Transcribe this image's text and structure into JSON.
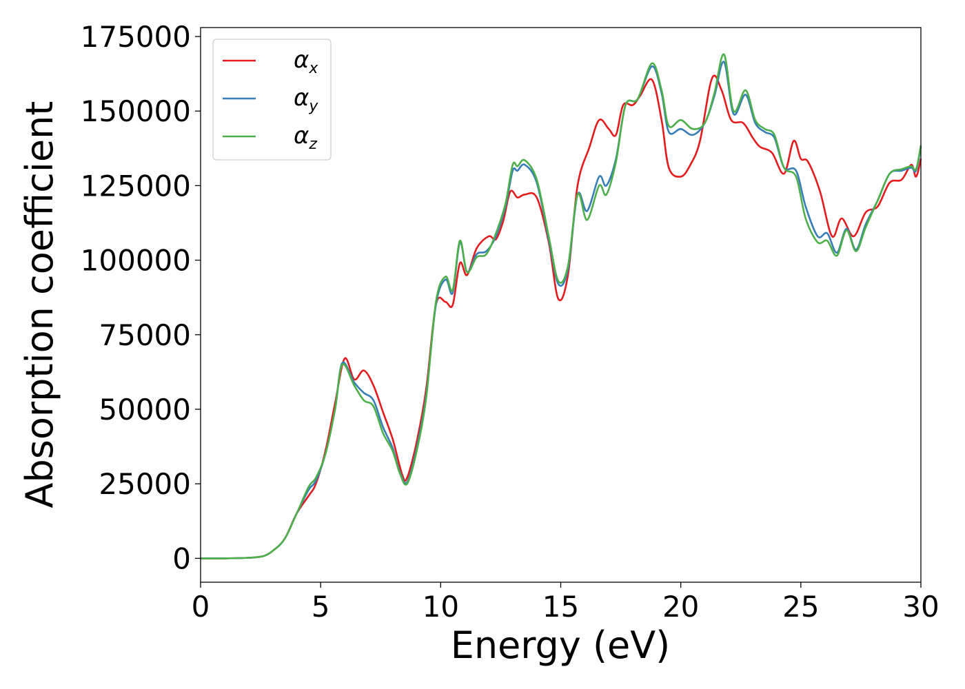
{
  "chart_data": {
    "type": "line",
    "xlabel": "Energy (eV)",
    "ylabel": "Absorption coefficient",
    "xlim": [
      0,
      30
    ],
    "ylim": [
      -8000,
      178000
    ],
    "xticks": [
      "0",
      "5",
      "10",
      "15",
      "20",
      "25",
      "30"
    ],
    "yticks": [
      "0",
      "25000",
      "50000",
      "75000",
      "100000",
      "125000",
      "150000",
      "175000"
    ],
    "grid": false,
    "legend_position": "top-left",
    "series": [
      {
        "name": "α_x",
        "label_main": "α",
        "label_sub": "x",
        "color": "#e41a1c",
        "points": [
          [
            0,
            0
          ],
          [
            1,
            0
          ],
          [
            2,
            200
          ],
          [
            2.6,
            700
          ],
          [
            3,
            2500
          ],
          [
            3.5,
            6500
          ],
          [
            4,
            15000
          ],
          [
            4.5,
            21000
          ],
          [
            4.8,
            25000
          ],
          [
            5.2,
            36000
          ],
          [
            5.6,
            52000
          ],
          [
            6,
            67000
          ],
          [
            6.4,
            60000
          ],
          [
            6.8,
            63000
          ],
          [
            7.2,
            58000
          ],
          [
            7.6,
            49000
          ],
          [
            8,
            40000
          ],
          [
            8.4,
            28000
          ],
          [
            8.6,
            27000
          ],
          [
            9,
            39000
          ],
          [
            9.4,
            57000
          ],
          [
            9.8,
            85000
          ],
          [
            10.2,
            86000
          ],
          [
            10.5,
            85000
          ],
          [
            10.8,
            99000
          ],
          [
            11.1,
            95000
          ],
          [
            11.5,
            104000
          ],
          [
            12,
            108000
          ],
          [
            12.3,
            107000
          ],
          [
            12.6,
            113000
          ],
          [
            12.9,
            123000
          ],
          [
            13.2,
            121000
          ],
          [
            13.5,
            122000
          ],
          [
            14,
            121000
          ],
          [
            14.5,
            106000
          ],
          [
            14.9,
            87000
          ],
          [
            15.3,
            95000
          ],
          [
            15.7,
            125000
          ],
          [
            16.2,
            138000
          ],
          [
            16.6,
            147000
          ],
          [
            17,
            144000
          ],
          [
            17.3,
            142000
          ],
          [
            17.6,
            152000
          ],
          [
            18,
            152000
          ],
          [
            18.3,
            155000
          ],
          [
            18.8,
            160500
          ],
          [
            19.2,
            147000
          ],
          [
            19.5,
            131000
          ],
          [
            20,
            128000
          ],
          [
            20.4,
            132000
          ],
          [
            20.8,
            140000
          ],
          [
            21.3,
            161000
          ],
          [
            21.7,
            157000
          ],
          [
            22.1,
            147000
          ],
          [
            22.6,
            146000
          ],
          [
            23,
            141000
          ],
          [
            23.3,
            138000
          ],
          [
            23.8,
            136000
          ],
          [
            24.3,
            129000
          ],
          [
            24.7,
            140000
          ],
          [
            25,
            134000
          ],
          [
            25.3,
            133000
          ],
          [
            25.8,
            123000
          ],
          [
            26.3,
            108000
          ],
          [
            26.7,
            114000
          ],
          [
            27.2,
            108000
          ],
          [
            27.7,
            116000
          ],
          [
            28.2,
            118000
          ],
          [
            28.7,
            126000
          ],
          [
            29.2,
            127000
          ],
          [
            29.6,
            132000
          ],
          [
            29.8,
            128000
          ],
          [
            30,
            134000
          ]
        ]
      },
      {
        "name": "α_y",
        "label_main": "α",
        "label_sub": "y",
        "color": "#377eb8",
        "points": [
          [
            0,
            0
          ],
          [
            1,
            0
          ],
          [
            2,
            200
          ],
          [
            2.6,
            700
          ],
          [
            3,
            2500
          ],
          [
            3.5,
            6500
          ],
          [
            4,
            15000
          ],
          [
            4.5,
            23000
          ],
          [
            4.8,
            26000
          ],
          [
            5.2,
            35000
          ],
          [
            5.6,
            50000
          ],
          [
            5.9,
            65500
          ],
          [
            6.4,
            59000
          ],
          [
            6.8,
            55500
          ],
          [
            7.2,
            53000
          ],
          [
            7.6,
            44000
          ],
          [
            8,
            37000
          ],
          [
            8.3,
            29000
          ],
          [
            8.6,
            25500
          ],
          [
            9,
            37000
          ],
          [
            9.4,
            55000
          ],
          [
            9.8,
            85000
          ],
          [
            10.2,
            93500
          ],
          [
            10.5,
            89000
          ],
          [
            10.8,
            106000
          ],
          [
            11.1,
            96000
          ],
          [
            11.5,
            102000
          ],
          [
            11.9,
            103000
          ],
          [
            12.3,
            108000
          ],
          [
            12.7,
            118000
          ],
          [
            13,
            130000
          ],
          [
            13.2,
            130000
          ],
          [
            13.5,
            132000
          ],
          [
            14,
            126000
          ],
          [
            14.5,
            107000
          ],
          [
            14.9,
            92000
          ],
          [
            15.3,
            97000
          ],
          [
            15.7,
            122000
          ],
          [
            16.1,
            116500
          ],
          [
            16.6,
            128000
          ],
          [
            16.9,
            125000
          ],
          [
            17.3,
            134000
          ],
          [
            17.7,
            152000
          ],
          [
            18.2,
            154000
          ],
          [
            18.8,
            165000
          ],
          [
            19.2,
            156000
          ],
          [
            19.5,
            143000
          ],
          [
            20,
            144000
          ],
          [
            20.5,
            142000
          ],
          [
            21,
            146000
          ],
          [
            21.4,
            155000
          ],
          [
            21.8,
            166500
          ],
          [
            22.2,
            149000
          ],
          [
            22.7,
            155500
          ],
          [
            23.1,
            146000
          ],
          [
            23.5,
            143000
          ],
          [
            23.9,
            141000
          ],
          [
            24.3,
            131000
          ],
          [
            24.8,
            130000
          ],
          [
            25.2,
            118000
          ],
          [
            25.7,
            108000
          ],
          [
            26.1,
            109000
          ],
          [
            26.5,
            102500
          ],
          [
            26.9,
            110500
          ],
          [
            27.3,
            103500
          ],
          [
            27.7,
            112000
          ],
          [
            28.2,
            120000
          ],
          [
            28.7,
            129000
          ],
          [
            29.2,
            130000
          ],
          [
            29.6,
            131000
          ],
          [
            29.8,
            130000
          ],
          [
            30,
            138000
          ]
        ]
      },
      {
        "name": "α_z",
        "label_main": "α",
        "label_sub": "z",
        "color": "#4daf4a",
        "points": [
          [
            0,
            0
          ],
          [
            1,
            0
          ],
          [
            2,
            200
          ],
          [
            2.6,
            700
          ],
          [
            3,
            2500
          ],
          [
            3.5,
            6500
          ],
          [
            4,
            15000
          ],
          [
            4.5,
            24000
          ],
          [
            4.8,
            27000
          ],
          [
            5.2,
            35000
          ],
          [
            5.6,
            50000
          ],
          [
            5.9,
            65000
          ],
          [
            6.4,
            58000
          ],
          [
            6.8,
            53000
          ],
          [
            7.2,
            51000
          ],
          [
            7.6,
            42000
          ],
          [
            8,
            36000
          ],
          [
            8.3,
            28500
          ],
          [
            8.6,
            25000
          ],
          [
            9,
            36000
          ],
          [
            9.4,
            54000
          ],
          [
            9.8,
            86000
          ],
          [
            10.2,
            94500
          ],
          [
            10.5,
            90000
          ],
          [
            10.8,
            106500
          ],
          [
            11.1,
            96000
          ],
          [
            11.5,
            101000
          ],
          [
            11.9,
            102000
          ],
          [
            12.3,
            109000
          ],
          [
            12.7,
            119000
          ],
          [
            13,
            132000
          ],
          [
            13.2,
            131500
          ],
          [
            13.5,
            133500
          ],
          [
            14,
            127000
          ],
          [
            14.5,
            108000
          ],
          [
            14.9,
            93000
          ],
          [
            15.3,
            98000
          ],
          [
            15.7,
            122000
          ],
          [
            16.1,
            113500
          ],
          [
            16.6,
            125000
          ],
          [
            16.9,
            122000
          ],
          [
            17.3,
            133000
          ],
          [
            17.7,
            152000
          ],
          [
            18.2,
            154000
          ],
          [
            18.8,
            166000
          ],
          [
            19.2,
            157000
          ],
          [
            19.5,
            145000
          ],
          [
            20,
            147000
          ],
          [
            20.5,
            144000
          ],
          [
            21,
            146000
          ],
          [
            21.4,
            156000
          ],
          [
            21.8,
            169000
          ],
          [
            22.2,
            150000
          ],
          [
            22.7,
            157000
          ],
          [
            23.1,
            147000
          ],
          [
            23.5,
            144000
          ],
          [
            23.9,
            142000
          ],
          [
            24.3,
            131000
          ],
          [
            24.8,
            128000
          ],
          [
            25.2,
            114000
          ],
          [
            25.7,
            106000
          ],
          [
            26.1,
            106500
          ],
          [
            26.5,
            101500
          ],
          [
            26.9,
            110000
          ],
          [
            27.3,
            103000
          ],
          [
            27.7,
            111000
          ],
          [
            28.2,
            120000
          ],
          [
            28.7,
            129000
          ],
          [
            29.2,
            130500
          ],
          [
            29.6,
            131500
          ],
          [
            29.8,
            130500
          ],
          [
            30,
            138500
          ]
        ]
      }
    ]
  }
}
